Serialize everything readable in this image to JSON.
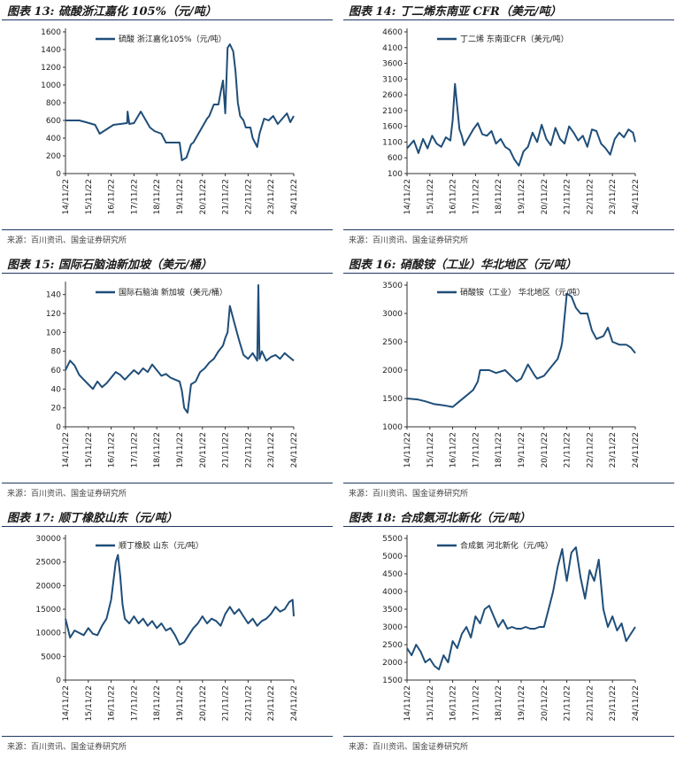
{
  "colors": {
    "line": "#1f4e79",
    "rule": "#1f3864"
  },
  "panels": [
    {
      "title": "图表 13: 硫酸浙江嘉化 105%（元/吨）",
      "source": "来源：百川资讯、国金证券研究所",
      "chart_data": {
        "type": "line",
        "x_ticks": [
          "14/11/22",
          "15/11/22",
          "16/11/22",
          "17/11/22",
          "18/11/22",
          "19/11/22",
          "20/11/22",
          "21/11/22",
          "22/11/22",
          "23/11/22",
          "24/11/22"
        ],
        "ylim": [
          0,
          1600
        ],
        "y_ticks": [
          0,
          200,
          400,
          600,
          800,
          1000,
          1200,
          1400,
          1600
        ],
        "legend": "硫酸 浙江嘉化105%（元/吨）",
        "series": [
          {
            "name": "硫酸 浙江嘉化105%（元/吨）",
            "x": [
              0,
              0.6,
              0.9,
              1.3,
              1.5,
              2.1,
              2.7,
              2.72,
              2.8,
              3.0,
              3.3,
              3.7,
              3.9,
              4.2,
              4.4,
              5.0,
              5.1,
              5.3,
              5.5,
              5.6,
              6.2,
              6.3,
              6.5,
              6.7,
              6.8,
              6.9,
              7.0,
              7.1,
              7.2,
              7.35,
              7.45,
              7.55,
              7.65,
              7.8,
              7.9,
              8.1,
              8.2,
              8.4,
              8.5,
              8.7,
              8.9,
              9.1,
              9.3,
              9.5,
              9.7,
              9.85,
              10.0
            ],
            "values": [
              600,
              600,
              580,
              550,
              450,
              550,
              570,
              700,
              560,
              570,
              700,
              520,
              480,
              450,
              350,
              350,
              150,
              180,
              330,
              350,
              620,
              650,
              780,
              780,
              920,
              1050,
              680,
              1420,
              1460,
              1380,
              1150,
              800,
              650,
              600,
              520,
              520,
              400,
              300,
              450,
              620,
              600,
              650,
              560,
              620,
              680,
              580,
              650
            ]
          }
        ]
      }
    },
    {
      "title": "图表 14: 丁二烯东南亚 CFR（美元/吨）",
      "source": "来源：百川资讯、国金证券研究所",
      "chart_data": {
        "type": "line",
        "x_ticks": [
          "14/11/22",
          "15/11/22",
          "16/11/22",
          "17/11/22",
          "18/11/22",
          "19/11/22",
          "20/11/22",
          "21/11/22",
          "22/11/22",
          "23/11/22",
          "24/11/22"
        ],
        "ylim": [
          100,
          4600
        ],
        "y_ticks": [
          100,
          600,
          1100,
          1600,
          2100,
          2600,
          3100,
          3600,
          4100,
          4600
        ],
        "legend": "丁二烯 东南亚CFR（美元/吨）",
        "series": [
          {
            "name": "丁二烯 东南亚CFR（美元/吨）",
            "x": [
              0,
              0.3,
              0.5,
              0.7,
              0.9,
              1.1,
              1.3,
              1.5,
              1.7,
              1.9,
              2.0,
              2.1,
              2.2,
              2.3,
              2.4,
              2.5,
              2.7,
              2.9,
              3.1,
              3.3,
              3.5,
              3.7,
              3.9,
              4.1,
              4.3,
              4.5,
              4.7,
              4.9,
              5.1,
              5.3,
              5.5,
              5.7,
              5.9,
              6.1,
              6.3,
              6.5,
              6.7,
              6.9,
              7.1,
              7.3,
              7.5,
              7.7,
              7.9,
              8.1,
              8.3,
              8.5,
              8.7,
              8.9,
              9.1,
              9.3,
              9.5,
              9.7,
              9.9,
              10.0
            ],
            "values": [
              900,
              1150,
              750,
              1200,
              900,
              1300,
              1050,
              950,
              1250,
              1150,
              1800,
              2950,
              2200,
              1500,
              1300,
              1000,
              1250,
              1500,
              1700,
              1350,
              1300,
              1450,
              1050,
              1200,
              950,
              850,
              550,
              350,
              800,
              950,
              1400,
              1100,
              1650,
              1200,
              1000,
              1550,
              1200,
              1050,
              1600,
              1400,
              1150,
              1300,
              950,
              1500,
              1450,
              1050,
              900,
              700,
              1200,
              1400,
              1250,
              1500,
              1400,
              1100
            ]
          }
        ]
      }
    },
    {
      "title": "图表 15: 国际石脑油新加坡（美元/桶）",
      "source": "来源：百川资讯、国金证券研究所",
      "chart_data": {
        "type": "line",
        "x_ticks": [
          "14/11/22",
          "15/11/22",
          "16/11/22",
          "17/11/22",
          "18/11/22",
          "19/11/22",
          "20/11/22",
          "21/11/22",
          "22/11/22",
          "23/11/22",
          "24/11/22"
        ],
        "ylim": [
          0,
          150
        ],
        "y_ticks": [
          0,
          20,
          40,
          60,
          80,
          100,
          120,
          140
        ],
        "legend": "国际石脑油 新加坡（美元/桶）",
        "series": [
          {
            "name": "国际石脑油 新加坡（美元/桶）",
            "x": [
              0,
              0.2,
              0.4,
              0.6,
              0.8,
              1.0,
              1.2,
              1.4,
              1.6,
              1.8,
              2.0,
              2.2,
              2.4,
              2.6,
              2.8,
              3.0,
              3.2,
              3.4,
              3.6,
              3.8,
              4.0,
              4.2,
              4.4,
              4.6,
              4.8,
              5.0,
              5.1,
              5.2,
              5.35,
              5.5,
              5.7,
              5.9,
              6.1,
              6.3,
              6.5,
              6.7,
              6.9,
              7.0,
              7.1,
              7.2,
              7.4,
              7.6,
              7.8,
              8.0,
              8.2,
              8.4,
              8.45,
              8.5,
              8.6,
              8.8,
              9.0,
              9.2,
              9.4,
              9.6,
              9.8,
              10.0
            ],
            "values": [
              60,
              70,
              65,
              55,
              50,
              45,
              40,
              48,
              42,
              46,
              52,
              58,
              55,
              50,
              55,
              60,
              56,
              62,
              58,
              66,
              60,
              54,
              56,
              52,
              50,
              48,
              38,
              20,
              15,
              45,
              48,
              58,
              62,
              68,
              72,
              80,
              86,
              94,
              100,
              128,
              110,
              92,
              76,
              72,
              78,
              70,
              150,
              72,
              80,
              70,
              74,
              76,
              72,
              78,
              74,
              70
            ]
          }
        ]
      }
    },
    {
      "title": "图表 16: 硝酸铵（工业）华北地区（元/吨）",
      "source": "来源：百川资讯、国金证券研究所",
      "chart_data": {
        "type": "line",
        "x_ticks": [
          "14/11/22",
          "15/11/22",
          "16/11/22",
          "17/11/22",
          "18/11/22",
          "19/11/22",
          "20/11/22",
          "21/11/22",
          "22/11/22",
          "23/11/22",
          "24/11/22"
        ],
        "ylim": [
          1000,
          3500
        ],
        "y_ticks": [
          1000,
          1500,
          2000,
          2500,
          3000,
          3500
        ],
        "legend": "硝酸铵（工业） 华北地区（元/吨）",
        "series": [
          {
            "name": "硝酸铵（工业） 华北地区（元/吨）",
            "x": [
              0,
              0.5,
              0.8,
              1.2,
              1.6,
              2.0,
              2.3,
              2.6,
              2.9,
              3.1,
              3.2,
              3.6,
              3.9,
              4.3,
              4.8,
              5.0,
              5.3,
              5.6,
              5.7,
              6.0,
              6.2,
              6.4,
              6.6,
              6.75,
              6.8,
              7.0,
              7.2,
              7.4,
              7.6,
              7.9,
              8.1,
              8.3,
              8.6,
              8.8,
              9.0,
              9.3,
              9.6,
              9.8,
              10.0
            ],
            "values": [
              1500,
              1480,
              1450,
              1400,
              1380,
              1350,
              1450,
              1550,
              1650,
              1800,
              2000,
              2000,
              1950,
              2000,
              1800,
              1850,
              2100,
              1900,
              1850,
              1900,
              2000,
              2100,
              2200,
              2400,
              2500,
              3350,
              3300,
              3100,
              3000,
              3000,
              2700,
              2550,
              2600,
              2750,
              2500,
              2450,
              2450,
              2400,
              2300
            ]
          }
        ]
      }
    },
    {
      "title": "图表 17: 顺丁橡胶山东（元/吨）",
      "source": "来源：百川资讯、国金证券研究所",
      "chart_data": {
        "type": "line",
        "x_ticks": [
          "14/11/22",
          "15/11/22",
          "16/11/22",
          "17/11/22",
          "18/11/22",
          "19/11/22",
          "20/11/22",
          "21/11/22",
          "22/11/22",
          "23/11/22",
          "24/11/22"
        ],
        "ylim": [
          0,
          30000
        ],
        "y_ticks": [
          0,
          5000,
          10000,
          15000,
          20000,
          25000,
          30000
        ],
        "legend": "顺丁橡胶 山东（元/吨）",
        "series": [
          {
            "name": "顺丁橡胶 山东（元/吨）",
            "x": [
              0,
              0.2,
              0.4,
              0.6,
              0.8,
              1.0,
              1.2,
              1.4,
              1.6,
              1.8,
              2.0,
              2.2,
              2.3,
              2.4,
              2.5,
              2.6,
              2.8,
              3.0,
              3.2,
              3.4,
              3.6,
              3.8,
              4.0,
              4.2,
              4.4,
              4.6,
              4.8,
              5.0,
              5.2,
              5.4,
              5.6,
              5.8,
              6.0,
              6.2,
              6.4,
              6.6,
              6.8,
              7.0,
              7.2,
              7.4,
              7.6,
              7.8,
              8.0,
              8.2,
              8.4,
              8.6,
              8.8,
              9.0,
              9.2,
              9.4,
              9.6,
              9.8,
              9.95,
              10.0
            ],
            "values": [
              13000,
              9000,
              10500,
              10000,
              9500,
              11000,
              9800,
              9500,
              11500,
              13000,
              17000,
              25000,
              26500,
              22000,
              16000,
              13000,
              12000,
              13500,
              12000,
              13000,
              11500,
              12500,
              11000,
              12000,
              10500,
              11000,
              9500,
              7500,
              8000,
              9500,
              11000,
              12000,
              13500,
              12000,
              13000,
              12500,
              11500,
              14000,
              15500,
              14000,
              15000,
              13500,
              12000,
              13000,
              11500,
              12500,
              13000,
              14000,
              15500,
              14500,
              15000,
              16500,
              17000,
              13500
            ]
          }
        ]
      }
    },
    {
      "title": "图表 18: 合成氨河北新化（元/吨）",
      "source": "来源：百川资讯、国金证券研究所",
      "chart_data": {
        "type": "line",
        "x_ticks": [
          "14/11/22",
          "15/11/22",
          "16/11/22",
          "17/11/22",
          "18/11/22",
          "19/11/22",
          "20/11/22",
          "21/11/22",
          "22/11/22",
          "23/11/22",
          "24/11/22"
        ],
        "ylim": [
          1500,
          5500
        ],
        "y_ticks": [
          1500,
          2000,
          2500,
          3000,
          3500,
          4000,
          4500,
          5000,
          5500
        ],
        "legend": "合成氨 河北新化（元/吨）",
        "series": [
          {
            "name": "合成氨 河北新化（元/吨）",
            "x": [
              0,
              0.2,
              0.4,
              0.6,
              0.8,
              1.0,
              1.2,
              1.4,
              1.6,
              1.8,
              2.0,
              2.2,
              2.4,
              2.6,
              2.8,
              3.0,
              3.2,
              3.4,
              3.6,
              3.8,
              4.0,
              4.2,
              4.4,
              4.6,
              4.8,
              5.0,
              5.2,
              5.4,
              5.6,
              5.8,
              6.0,
              6.2,
              6.4,
              6.6,
              6.8,
              6.9,
              7.0,
              7.2,
              7.4,
              7.6,
              7.8,
              8.0,
              8.2,
              8.4,
              8.6,
              8.8,
              9.0,
              9.2,
              9.4,
              9.6,
              9.8,
              10.0
            ],
            "values": [
              2400,
              2200,
              2500,
              2300,
              2000,
              2100,
              1900,
              1800,
              2200,
              2000,
              2600,
              2400,
              2800,
              3000,
              2700,
              3300,
              3100,
              3500,
              3600,
              3300,
              3000,
              3200,
              2950,
              3000,
              2950,
              2950,
              3000,
              2950,
              2950,
              3000,
              3000,
              3500,
              4000,
              4700,
              5200,
              4700,
              4300,
              5100,
              5250,
              4400,
              3800,
              4600,
              4300,
              4900,
              3500,
              3000,
              3300,
              2900,
              3100,
              2600,
              2800,
              3000
            ]
          }
        ]
      }
    }
  ]
}
